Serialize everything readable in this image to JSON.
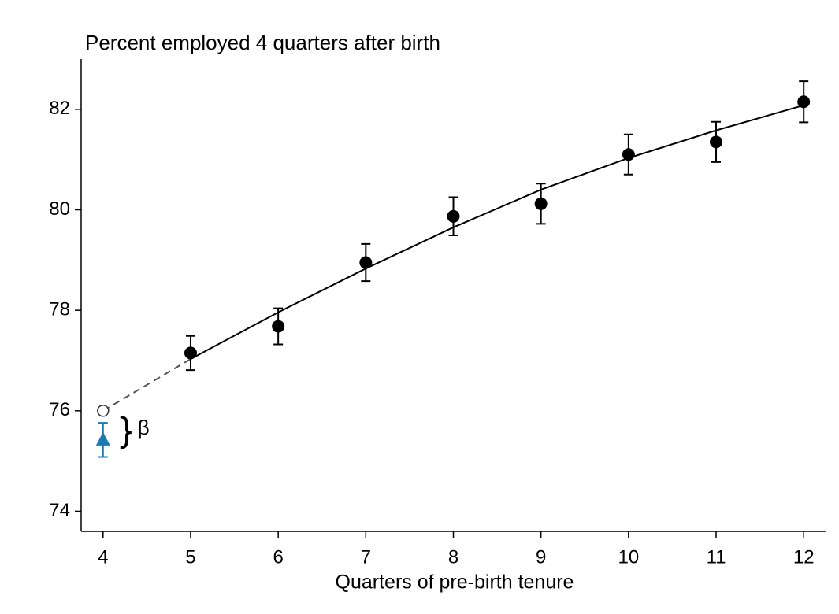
{
  "chart_data": {
    "type": "scatter",
    "title": "Percent employed 4 quarters after birth",
    "x_label": "Quarters of pre-birth tenure",
    "xlim": [
      3.75,
      12.25
    ],
    "ylim": [
      73.6,
      83
    ],
    "xticks": [
      4,
      5,
      6,
      7,
      8,
      9,
      10,
      11,
      12
    ],
    "yticks": [
      74,
      76,
      78,
      80,
      82
    ],
    "series": [
      {
        "x": [
          5,
          6,
          7,
          8,
          9,
          10,
          11,
          12
        ],
        "values": [
          77.15,
          77.68,
          78.95,
          79.87,
          80.12,
          81.1,
          81.35,
          82.15
        ],
        "errors": [
          0.34,
          0.36,
          0.37,
          0.38,
          0.4,
          0.4,
          0.4,
          0.41
        ],
        "color": "#000000",
        "marker": "circle"
      },
      {
        "x": [
          4
        ],
        "values": [
          75.42
        ],
        "errors": [
          0.34
        ],
        "color": "#1a7ab5",
        "marker": "triangle"
      }
    ],
    "fit": {
      "x": [
        5,
        6,
        7,
        8,
        9,
        10,
        11,
        12
      ],
      "values": [
        77.03,
        77.96,
        78.83,
        79.65,
        80.4,
        81.03,
        81.58,
        82.08
      ],
      "color": "#000000"
    },
    "extrapolation": {
      "x": [
        4,
        5
      ],
      "values": [
        76.0,
        77.03
      ],
      "color": "#555555"
    },
    "counterfactual": {
      "x": [
        4
      ],
      "values": [
        76.0
      ]
    },
    "annotation": "β"
  }
}
